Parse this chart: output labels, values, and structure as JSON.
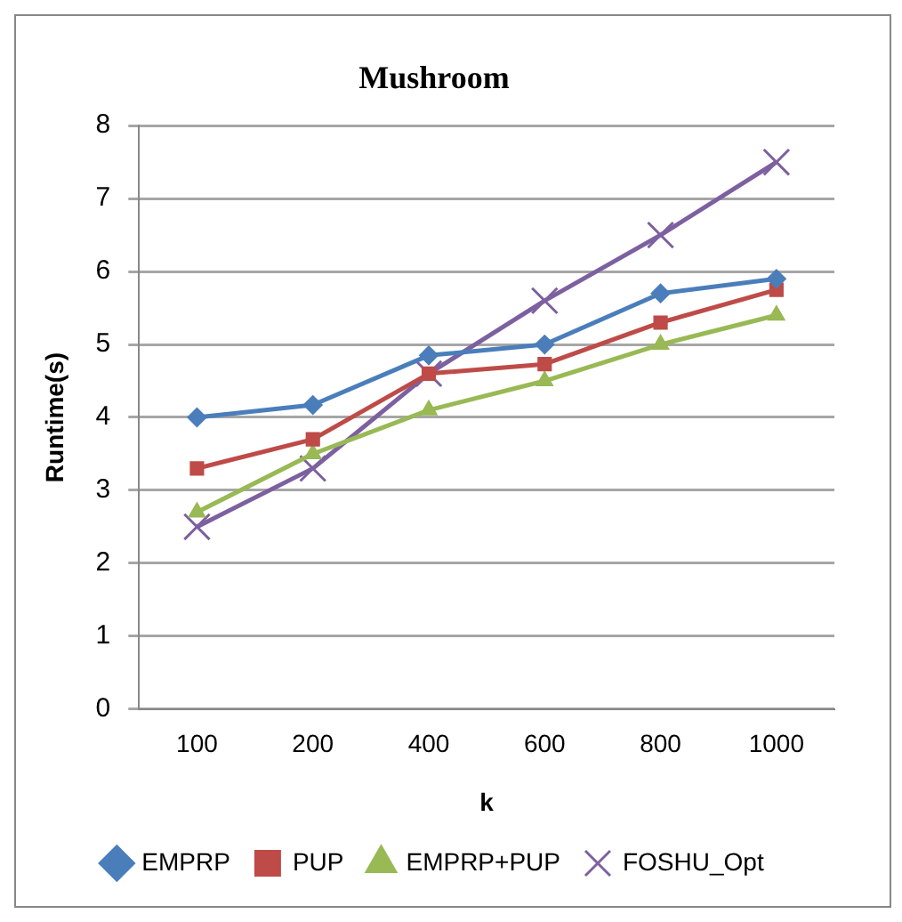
{
  "chart_data": {
    "type": "line",
    "title": "Mushroom",
    "xlabel": "k",
    "ylabel": "Runtime(s)",
    "categories": [
      "100",
      "200",
      "400",
      "600",
      "800",
      "1000"
    ],
    "series": [
      {
        "name": "EMPRP",
        "color": "#4a7ebb",
        "marker": "diamond",
        "values": [
          4.0,
          4.17,
          4.85,
          5.0,
          5.7,
          5.9
        ]
      },
      {
        "name": "PUP",
        "color": "#be4b48",
        "marker": "square",
        "values": [
          3.3,
          3.7,
          4.6,
          4.73,
          5.3,
          5.75
        ]
      },
      {
        "name": "EMPRP+PUP",
        "color": "#98b954",
        "marker": "triangle",
        "values": [
          2.7,
          3.5,
          4.1,
          4.5,
          5.0,
          5.4
        ]
      },
      {
        "name": "FOSHU_Opt",
        "color": "#7d60a0",
        "marker": "cross",
        "values": [
          2.5,
          3.3,
          4.6,
          5.6,
          6.5,
          7.5
        ]
      }
    ],
    "ylim": [
      0,
      8
    ],
    "yticks": [
      0,
      1,
      2,
      3,
      4,
      5,
      6,
      7,
      8
    ],
    "grid": "y",
    "legend": "bottom"
  }
}
